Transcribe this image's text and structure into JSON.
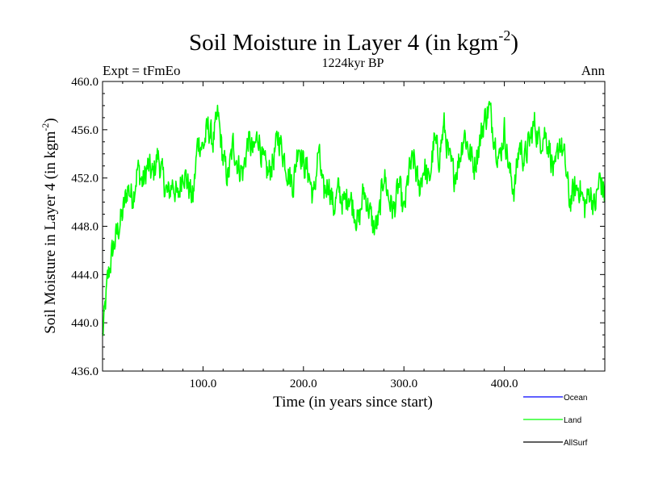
{
  "chart_data": {
    "type": "line",
    "title": "Soil Moisture in Layer 4 (in kgm",
    "title_sup": "-2",
    "title_end": ")",
    "subtitle": "1224kyr BP",
    "left_label": "Expt = tFmEo",
    "right_label": "Ann",
    "xlabel": "Time (in years since start)",
    "ylabel": "Soil Moisture in Layer 4 (in kgm",
    "ylabel_sup": "-2",
    "ylabel_end": ")",
    "xlim": [
      0,
      500
    ],
    "ylim": [
      436,
      460
    ],
    "x_ticks": [
      100,
      200,
      300,
      400
    ],
    "x_tick_labels": [
      "100.0",
      "200.0",
      "300.0",
      "400.0"
    ],
    "y_ticks": [
      436,
      440,
      444,
      448,
      452,
      456,
      460
    ],
    "y_tick_labels": [
      "436.0",
      "440.0",
      "444.0",
      "448.0",
      "452.0",
      "456.0",
      "460.0"
    ],
    "legend": [
      {
        "name": "Ocean",
        "color": "#0000ff"
      },
      {
        "name": "Land",
        "color": "#00ff00"
      },
      {
        "name": "AllSurf",
        "color": "#000000"
      }
    ],
    "series": [
      {
        "name": "Land",
        "color": "#00ff00",
        "x_step": 5,
        "values": [
          438.8,
          443.5,
          446.0,
          447.6,
          449.0,
          451.2,
          450.4,
          452.8,
          451.5,
          453.0,
          452.2,
          453.9,
          452.0,
          450.5,
          451.7,
          450.2,
          452.8,
          451.5,
          450.2,
          455.2,
          454.5,
          456.2,
          455.0,
          457.2,
          453.5,
          452.0,
          454.8,
          453.0,
          452.5,
          455.2,
          454.0,
          455.7,
          453.2,
          452.3,
          453.5,
          455.5,
          454.0,
          452.3,
          451.5,
          455.0,
          453.2,
          452.5,
          450.2,
          454.3,
          450.5,
          451.8,
          449.5,
          451.0,
          449.8,
          450.8,
          449.5,
          448.2,
          451.0,
          449.5,
          447.8,
          448.5,
          452.5,
          450.3,
          449.2,
          451.5,
          449.0,
          452.5,
          453.5,
          451.0,
          453.0,
          451.5,
          455.0,
          453.8,
          456.3,
          453.5,
          452.2,
          453.5,
          455.8,
          454.2,
          453.0,
          454.8,
          456.8,
          457.8,
          455.5,
          453.5,
          456.0,
          452.5,
          451.0,
          454.8,
          453.5,
          455.0,
          456.5,
          455.0,
          455.8,
          454.5,
          452.0,
          455.2,
          453.5,
          450.0,
          451.0,
          451.3,
          449.5,
          451.0,
          449.5,
          452.0,
          450.5
        ]
      }
    ]
  }
}
